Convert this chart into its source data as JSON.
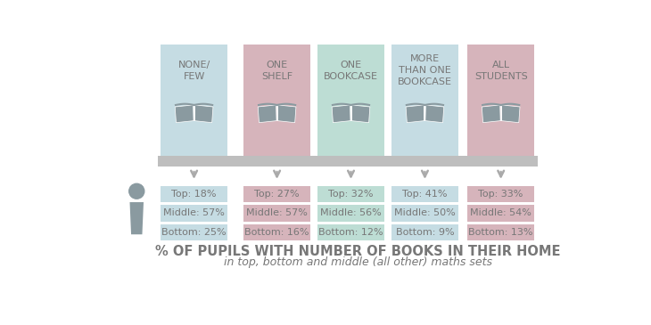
{
  "categories": [
    "NONE/\nFEW",
    "ONE\nSHELF",
    "ONE\nBOOKCASE",
    "MORE\nTHAN ONE\nBOOKCASE",
    "ALL\nSTUDENTS"
  ],
  "top_values": [
    18,
    27,
    32,
    41,
    33
  ],
  "middle_values": [
    57,
    57,
    56,
    50,
    54
  ],
  "bottom_values": [
    25,
    16,
    12,
    9,
    13
  ],
  "column_colors": [
    "#c5dce3",
    "#d6b4bb",
    "#bdddd4",
    "#c5dce3",
    "#d6b4bb"
  ],
  "book_icon_color": "#8a9aa0",
  "shelf_color": "#bebebe",
  "arrow_color": "#aaaaaa",
  "person_color": "#8a9aa0",
  "text_color": "#777777",
  "title_text": "% OF PUPILS WITH NUMBER OF BOOKS IN THEIR HOME",
  "subtitle_text": "in top, bottom and middle (all other) maths sets",
  "title_fontsize": 10.5,
  "subtitle_fontsize": 9,
  "label_fontsize": 8,
  "header_fontsize": 8,
  "background_color": "#ffffff"
}
